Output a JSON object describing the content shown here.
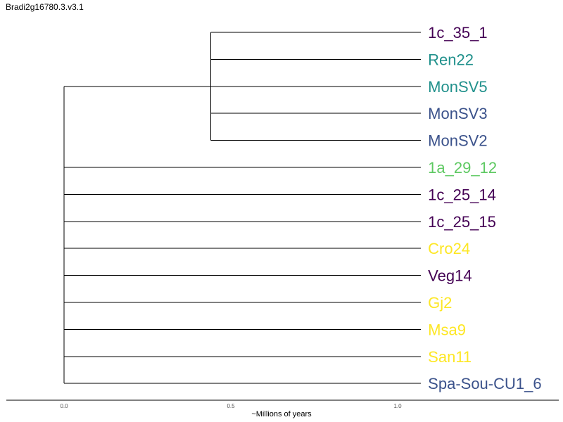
{
  "window_title": "Bradi2g16780.3.v3.1",
  "chart_data": {
    "type": "tree",
    "title": "Bradi2g16780.3.v3.1",
    "xlabel": "~Millions of years",
    "xlim": [
      -0.17,
      1.48
    ],
    "xticks": [
      0.0,
      0.5,
      1.0
    ],
    "xtick_labels": [
      "0.0",
      "0.5",
      "1.0"
    ],
    "tip_depth": 1.07,
    "grid": false,
    "clade": {
      "node_time": 0.44,
      "tips": [
        "1c_35_1",
        "Ren22",
        "MonSV5",
        "MonSV3",
        "MonSV2"
      ]
    },
    "leaves": [
      {
        "name": "1c_35_1",
        "color": "#440154"
      },
      {
        "name": "Ren22",
        "color": "#21918c"
      },
      {
        "name": "MonSV5",
        "color": "#21918c"
      },
      {
        "name": "MonSV3",
        "color": "#3b528b"
      },
      {
        "name": "MonSV2",
        "color": "#3b528b"
      },
      {
        "name": "1a_29_12",
        "color": "#5ec962"
      },
      {
        "name": "1c_25_14",
        "color": "#440154"
      },
      {
        "name": "1c_25_15",
        "color": "#440154"
      },
      {
        "name": "Cro24",
        "color": "#fde725"
      },
      {
        "name": "Veg14",
        "color": "#440154"
      },
      {
        "name": "Gj2",
        "color": "#fde725"
      },
      {
        "name": "Msa9",
        "color": "#fde725"
      },
      {
        "name": "San11",
        "color": "#fde725"
      },
      {
        "name": "Spa-Sou-CU1_6",
        "color": "#3b528b"
      }
    ]
  }
}
